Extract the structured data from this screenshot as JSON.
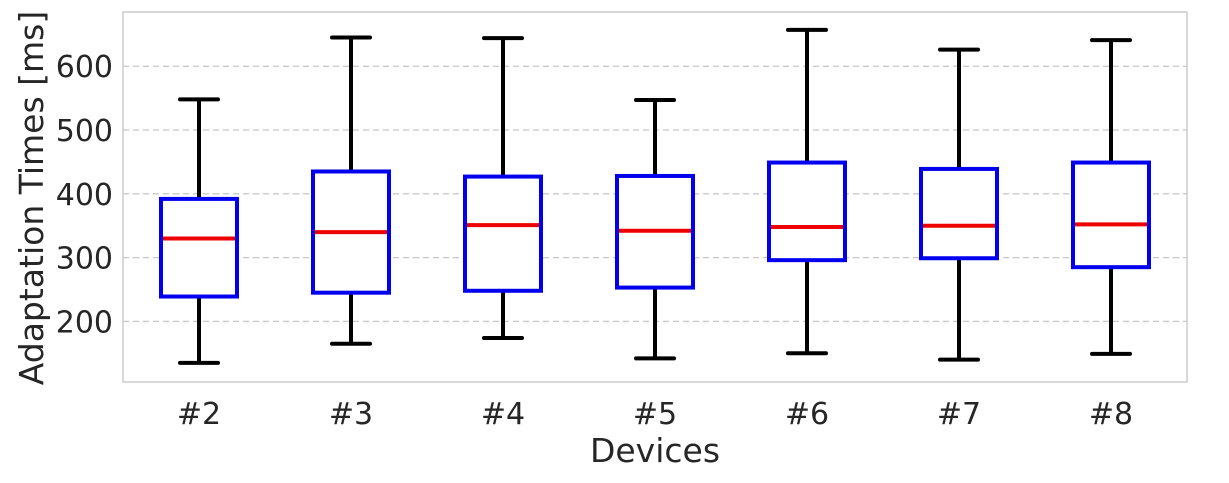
{
  "chart_data": {
    "type": "box",
    "xlabel": "Devices",
    "ylabel": "Adaptation Times [ms]",
    "ylim": [
      105,
      685
    ],
    "yticks": [
      200,
      300,
      400,
      500,
      600
    ],
    "grid": "horizontal dashed",
    "categories": [
      "#2",
      "#3",
      "#4",
      "#5",
      "#6",
      "#7",
      "#8"
    ],
    "boxes": [
      {
        "whislo": 135,
        "q1": 239,
        "med": 330,
        "q3": 392,
        "whishi": 548
      },
      {
        "whislo": 165,
        "q1": 245,
        "med": 340,
        "q3": 435,
        "whishi": 645
      },
      {
        "whislo": 174,
        "q1": 248,
        "med": 351,
        "q3": 427,
        "whishi": 644
      },
      {
        "whislo": 142,
        "q1": 253,
        "med": 342,
        "q3": 428,
        "whishi": 547
      },
      {
        "whislo": 150,
        "q1": 296,
        "med": 348,
        "q3": 449,
        "whishi": 657
      },
      {
        "whislo": 140,
        "q1": 299,
        "med": 350,
        "q3": 439,
        "whishi": 626
      },
      {
        "whislo": 149,
        "q1": 285,
        "med": 352,
        "q3": 449,
        "whishi": 641
      }
    ],
    "colors": {
      "box": "#0000ee",
      "median": "#ee0000",
      "whisker": "#000000",
      "grid": "#c8c8c8",
      "frame": "#cccccc",
      "text": "#262626"
    }
  }
}
